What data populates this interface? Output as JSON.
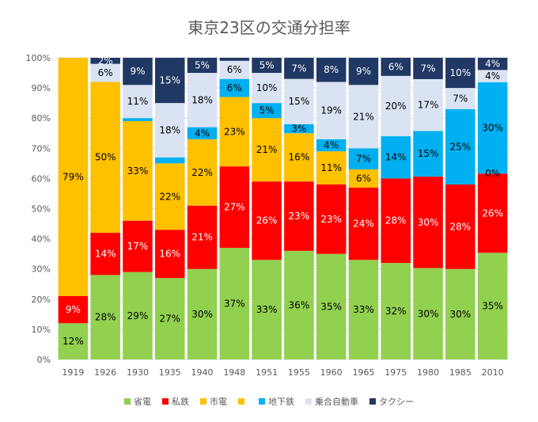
{
  "chart_data": {
    "type": "bar",
    "stacked": true,
    "title": "東京23区の交通分担率",
    "categories": [
      "1919",
      "1926",
      "1930",
      "1935",
      "1940",
      "1948",
      "1951",
      "1955",
      "1960",
      "1965",
      "1975",
      "1980",
      "1985",
      "2010"
    ],
    "ylim": [
      0,
      100
    ],
    "yticks": [
      "0%",
      "10%",
      "20%",
      "30%",
      "40%",
      "50%",
      "60%",
      "70%",
      "80%",
      "90%",
      "100%"
    ],
    "grid": true,
    "legend_position": "bottom",
    "series": [
      {
        "name": "省電",
        "color": "#92d050",
        "values": [
          12,
          28,
          29,
          27,
          30,
          37,
          33,
          36,
          35,
          33,
          32,
          30,
          30,
          35
        ],
        "labels": [
          "12%",
          "28%",
          "29%",
          "27%",
          "30%",
          "37%",
          "33%",
          "36%",
          "35%",
          "33%",
          "32%",
          "30%",
          "30%",
          "35%"
        ]
      },
      {
        "name": "私鉄",
        "color": "#ff0000",
        "values": [
          9,
          14,
          17,
          16,
          21,
          27,
          26,
          23,
          23,
          24,
          28,
          30,
          28,
          26
        ],
        "labels": [
          "9%",
          "14%",
          "17%",
          "16%",
          "21%",
          "27%",
          "26%",
          "23%",
          "23%",
          "24%",
          "28%",
          "30%",
          "28%",
          "26%"
        ]
      },
      {
        "name": "市電",
        "color": "#ffc000",
        "values": [
          79,
          50,
          33,
          22,
          22,
          23,
          21,
          16,
          11,
          6,
          0,
          0,
          0,
          0
        ],
        "labels": [
          "79%",
          "50%",
          "33%",
          "22%",
          "22%",
          "23%",
          "21%",
          "16%",
          "11%",
          "6%",
          "",
          "",
          "",
          "0%"
        ]
      },
      {
        "name": "",
        "color": "#ffc000",
        "values": [
          0,
          0,
          0,
          0,
          0,
          0,
          0,
          0,
          0,
          0,
          0,
          0,
          0,
          0
        ],
        "labels": [
          "",
          "",
          "",
          "",
          "",
          "",
          "",
          "",
          "",
          "",
          "",
          "",
          "",
          ""
        ]
      },
      {
        "name": "地下鉄",
        "color": "#00b0f0",
        "values": [
          0,
          0,
          1,
          2,
          4,
          6,
          5,
          3,
          4,
          7,
          14,
          15,
          25,
          30
        ],
        "labels": [
          "",
          "",
          "",
          "",
          "4%",
          "6%",
          "5%",
          "3%",
          "4%",
          "7%",
          "14%",
          "15%",
          "25%",
          "30%"
        ]
      },
      {
        "name": "乗合自動車",
        "color": "#dae3f3",
        "values": [
          0,
          6,
          11,
          18,
          18,
          6,
          10,
          15,
          19,
          21,
          20,
          17,
          7,
          4
        ],
        "labels": [
          "",
          "6%",
          "11%",
          "18%",
          "18%",
          "6%",
          "10%",
          "15%",
          "19%",
          "21%",
          "20%",
          "17%",
          "7%",
          "4%"
        ]
      },
      {
        "name": "タクシー",
        "color": "#203864",
        "values": [
          0,
          2,
          9,
          15,
          5,
          1,
          5,
          7,
          8,
          9,
          6,
          7,
          10,
          4
        ],
        "labels": [
          "",
          "2%",
          "9%",
          "15%",
          "5%",
          "",
          "5%",
          "7%",
          "8%",
          "9%",
          "6%",
          "7%",
          "10%",
          "4%"
        ]
      }
    ]
  }
}
